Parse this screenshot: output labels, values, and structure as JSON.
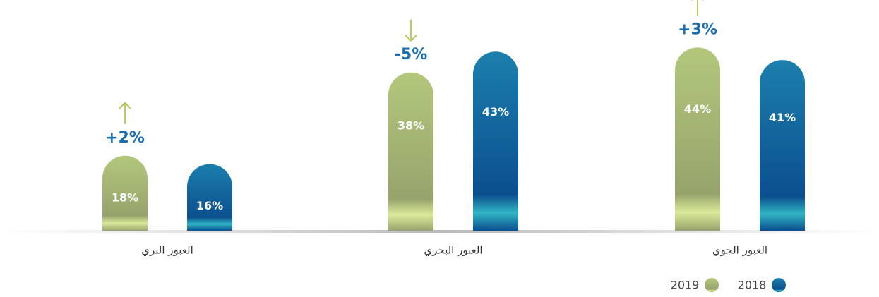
{
  "chart_data": {
    "type": "bar",
    "categories": [
      "العبور البري",
      "العبور البحري",
      "العبور الجوي"
    ],
    "series": [
      {
        "name": "2019",
        "color": "#b3c77c",
        "values": [
          18,
          38,
          44
        ],
        "value_labels": [
          "18%",
          "38%",
          "44%"
        ]
      },
      {
        "name": "2018",
        "color": "#1c7fae",
        "values": [
          16,
          43,
          41
        ],
        "value_labels": [
          "16%",
          "43%",
          "41%"
        ]
      }
    ],
    "changes": {
      "values": [
        2,
        -5,
        3
      ],
      "value_labels": [
        "+2%",
        "-5%",
        "+3%"
      ]
    }
  }
}
